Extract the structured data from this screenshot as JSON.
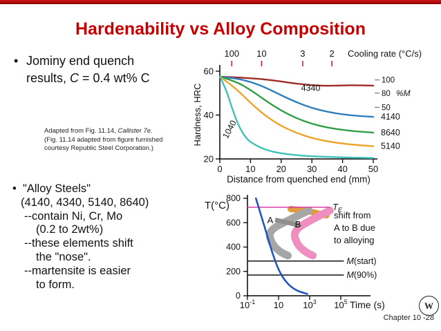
{
  "title": "Hardenability vs Alloy Composition",
  "colors": {
    "title": "#c40000",
    "top_bar": "#a81010",
    "cooling_axis": "#cc2222",
    "percent_martensite": "#4a7fc0",
    "eutectoid_line": "#d63fa8"
  },
  "bullet1": {
    "glyph": "•",
    "line1": "Jominy end quench",
    "line2_pre": "results, ",
    "line2_italic": "C",
    "line2_post": " = 0.4 wt% C"
  },
  "footnote": {
    "line1_pre": "Adapted from Fig. 11.14, ",
    "line1_italic": "Callister 7e.",
    "line2": "(Fig. 11.14 adapted from figure furnished",
    "line3": "courtesy Republic Steel Corporation.)"
  },
  "bullet2": {
    "glyph": "•",
    "bullet_line": "\"Alloy Steels\"",
    "lines": [
      "(4140, 4340, 5140, 8640)",
      "--contain Ni, Cr, Mo",
      "(0.2 to 2wt%)",
      "--these elements shift",
      "the \"nose\".",
      "--martensite is easier",
      "to form."
    ]
  },
  "footer": {
    "chapter": "Chapter 10 -28",
    "logo_letter": "W"
  },
  "chart_data": [
    {
      "type": "line",
      "title": "Jominy end-quench hardenability curves",
      "xlabel": "Distance from quenched end (mm)",
      "ylabel": "Hardness, HRC",
      "xlim": [
        0,
        50
      ],
      "ylim": [
        20,
        60
      ],
      "xticks": [
        0,
        10,
        20,
        30,
        40,
        50
      ],
      "yticks": [
        20,
        40,
        60
      ],
      "grid": false,
      "top_axis": {
        "label": "Cooling rate (°C/s)",
        "color": "#cc2222",
        "ticks": [
          {
            "label": "100",
            "mm": 3.9
          },
          {
            "label": "10",
            "mm": 13.6
          },
          {
            "label": "3",
            "mm": 27
          },
          {
            "label": "2",
            "mm": 36.5
          }
        ]
      },
      "right_axis": {
        "label": "%M",
        "color": "#4a7fc0",
        "ticks": [
          {
            "label": "100",
            "hrc": 56
          },
          {
            "label": "80",
            "hrc": 50
          },
          {
            "label": "50",
            "hrc": 43.5
          }
        ]
      },
      "series": [
        {
          "name": "4340",
          "color": "#9e2b25",
          "label_at": [
            26.5,
            51
          ],
          "label_rotate": 0,
          "points": [
            [
              0,
              57.5
            ],
            [
              5,
              57.2
            ],
            [
              10,
              56.8
            ],
            [
              15,
              56.2
            ],
            [
              20,
              55.3
            ],
            [
              25,
              54.3
            ],
            [
              30,
              53.6
            ],
            [
              35,
              53.3
            ],
            [
              40,
              53.5
            ],
            [
              45,
              53.6
            ],
            [
              50,
              53.4
            ]
          ]
        },
        {
          "name": "4140",
          "color": "#2e7fbe",
          "end_label": true,
          "points": [
            [
              0,
              57.5
            ],
            [
              5,
              56.8
            ],
            [
              10,
              55.2
            ],
            [
              15,
              52.5
            ],
            [
              20,
              49
            ],
            [
              25,
              45.8
            ],
            [
              30,
              43.2
            ],
            [
              35,
              41.5
            ],
            [
              40,
              40.3
            ],
            [
              45,
              39.6
            ],
            [
              50,
              39.2
            ]
          ]
        },
        {
          "name": "8640",
          "color": "#2f9e44",
          "end_label": true,
          "points": [
            [
              0,
              57.5
            ],
            [
              5,
              55.5
            ],
            [
              10,
              51.5
            ],
            [
              15,
              46.5
            ],
            [
              20,
              42
            ],
            [
              25,
              38.5
            ],
            [
              30,
              36
            ],
            [
              35,
              34.3
            ],
            [
              40,
              33.2
            ],
            [
              45,
              32.5
            ],
            [
              50,
              32
            ]
          ]
        },
        {
          "name": "5140",
          "color": "#efa229",
          "end_label": true,
          "points": [
            [
              0,
              57.5
            ],
            [
              5,
              52.5
            ],
            [
              10,
              45.5
            ],
            [
              15,
              39.5
            ],
            [
              20,
              35
            ],
            [
              25,
              31.8
            ],
            [
              30,
              29.5
            ],
            [
              35,
              28
            ],
            [
              40,
              27
            ],
            [
              45,
              26.3
            ],
            [
              50,
              25.8
            ]
          ]
        },
        {
          "name": "1040",
          "color": "#3fc0b8",
          "label_at": [
            2.5,
            29
          ],
          "label_rotate": -62,
          "points": [
            [
              0,
              57.5
            ],
            [
              2,
              52
            ],
            [
              4,
              43
            ],
            [
              6,
              35.5
            ],
            [
              8,
              30.5
            ],
            [
              10,
              27.5
            ],
            [
              15,
              24
            ],
            [
              20,
              22.5
            ],
            [
              25,
              21.7
            ],
            [
              30,
              21.2
            ],
            [
              40,
              20.7
            ],
            [
              50,
              20.4
            ]
          ]
        }
      ]
    },
    {
      "type": "line",
      "title": "TTT schematic: alloying shifts transformation curves from A to B",
      "xlabel": "Time (s)",
      "ylabel": "T(°C)",
      "ylim": [
        0,
        800
      ],
      "x_log_range": [
        -1,
        7
      ],
      "yticks": [
        0,
        200,
        400,
        600,
        800
      ],
      "xticks": [
        {
          "base": "10",
          "sup": "-1",
          "log": -1
        },
        {
          "base": "10",
          "sup": "",
          "log": 1
        },
        {
          "base": "10",
          "sup": "3",
          "log": 3
        },
        {
          "base": "10",
          "sup": "5",
          "log": 5
        }
      ],
      "lines": [
        {
          "name": "eutectoid-temp",
          "label_main": "T",
          "label_sub": "E",
          "color": "#d63fa8",
          "temp": 727,
          "x_to_log": 4.3
        },
        {
          "name": "martensite-start",
          "label_italic": "M",
          "label_rest": "(start)",
          "color": "#111111",
          "temp": 285,
          "x_to_log": 5.2
        },
        {
          "name": "martensite-90",
          "label_italic": "M",
          "label_rest": "(90%)",
          "color": "#111111",
          "temp": 170,
          "x_to_log": 5.2
        }
      ],
      "bands": [
        {
          "name": "pearlite-band",
          "color": "#e39a3b",
          "width": 9,
          "points": [
            [
              60,
              712
            ],
            [
              400,
              702
            ],
            [
              3000,
              678
            ],
            [
              12000,
              660
            ]
          ]
        },
        {
          "name": "curve-A",
          "color": "#a6a6a6",
          "width": 11,
          "label": "A",
          "label_at": [
            2.9,
            596
          ],
          "points": [
            [
              900,
              700
            ],
            [
              60,
              630
            ],
            [
              2.2,
              535
            ],
            [
              3.5,
              430
            ],
            [
              12,
              360
            ],
            [
              40,
              330
            ]
          ]
        },
        {
          "name": "curve-B",
          "color": "#ef8fc0",
          "width": 11,
          "label": "B",
          "label_at": [
            175,
            561
          ],
          "points": [
            [
              20000,
              700
            ],
            [
              1500,
              630
            ],
            [
              90,
              535
            ],
            [
              140,
              430
            ],
            [
              500,
              360
            ],
            [
              1600,
              330
            ]
          ]
        }
      ],
      "cooling_curve": {
        "color": "#2255bb",
        "points": [
          [
            0.35,
            800
          ],
          [
            0.8,
            650
          ],
          [
            1.8,
            500
          ],
          [
            4,
            350
          ],
          [
            10,
            210
          ],
          [
            30,
            110
          ],
          [
            120,
            45
          ],
          [
            700,
            15
          ]
        ]
      },
      "arrow": {
        "from": [
          6,
          624
        ],
        "to": [
          324,
          573
        ],
        "color": "#8f8f8f"
      },
      "annotation": [
        "shift from",
        "A to B due",
        "to alloying"
      ]
    }
  ]
}
